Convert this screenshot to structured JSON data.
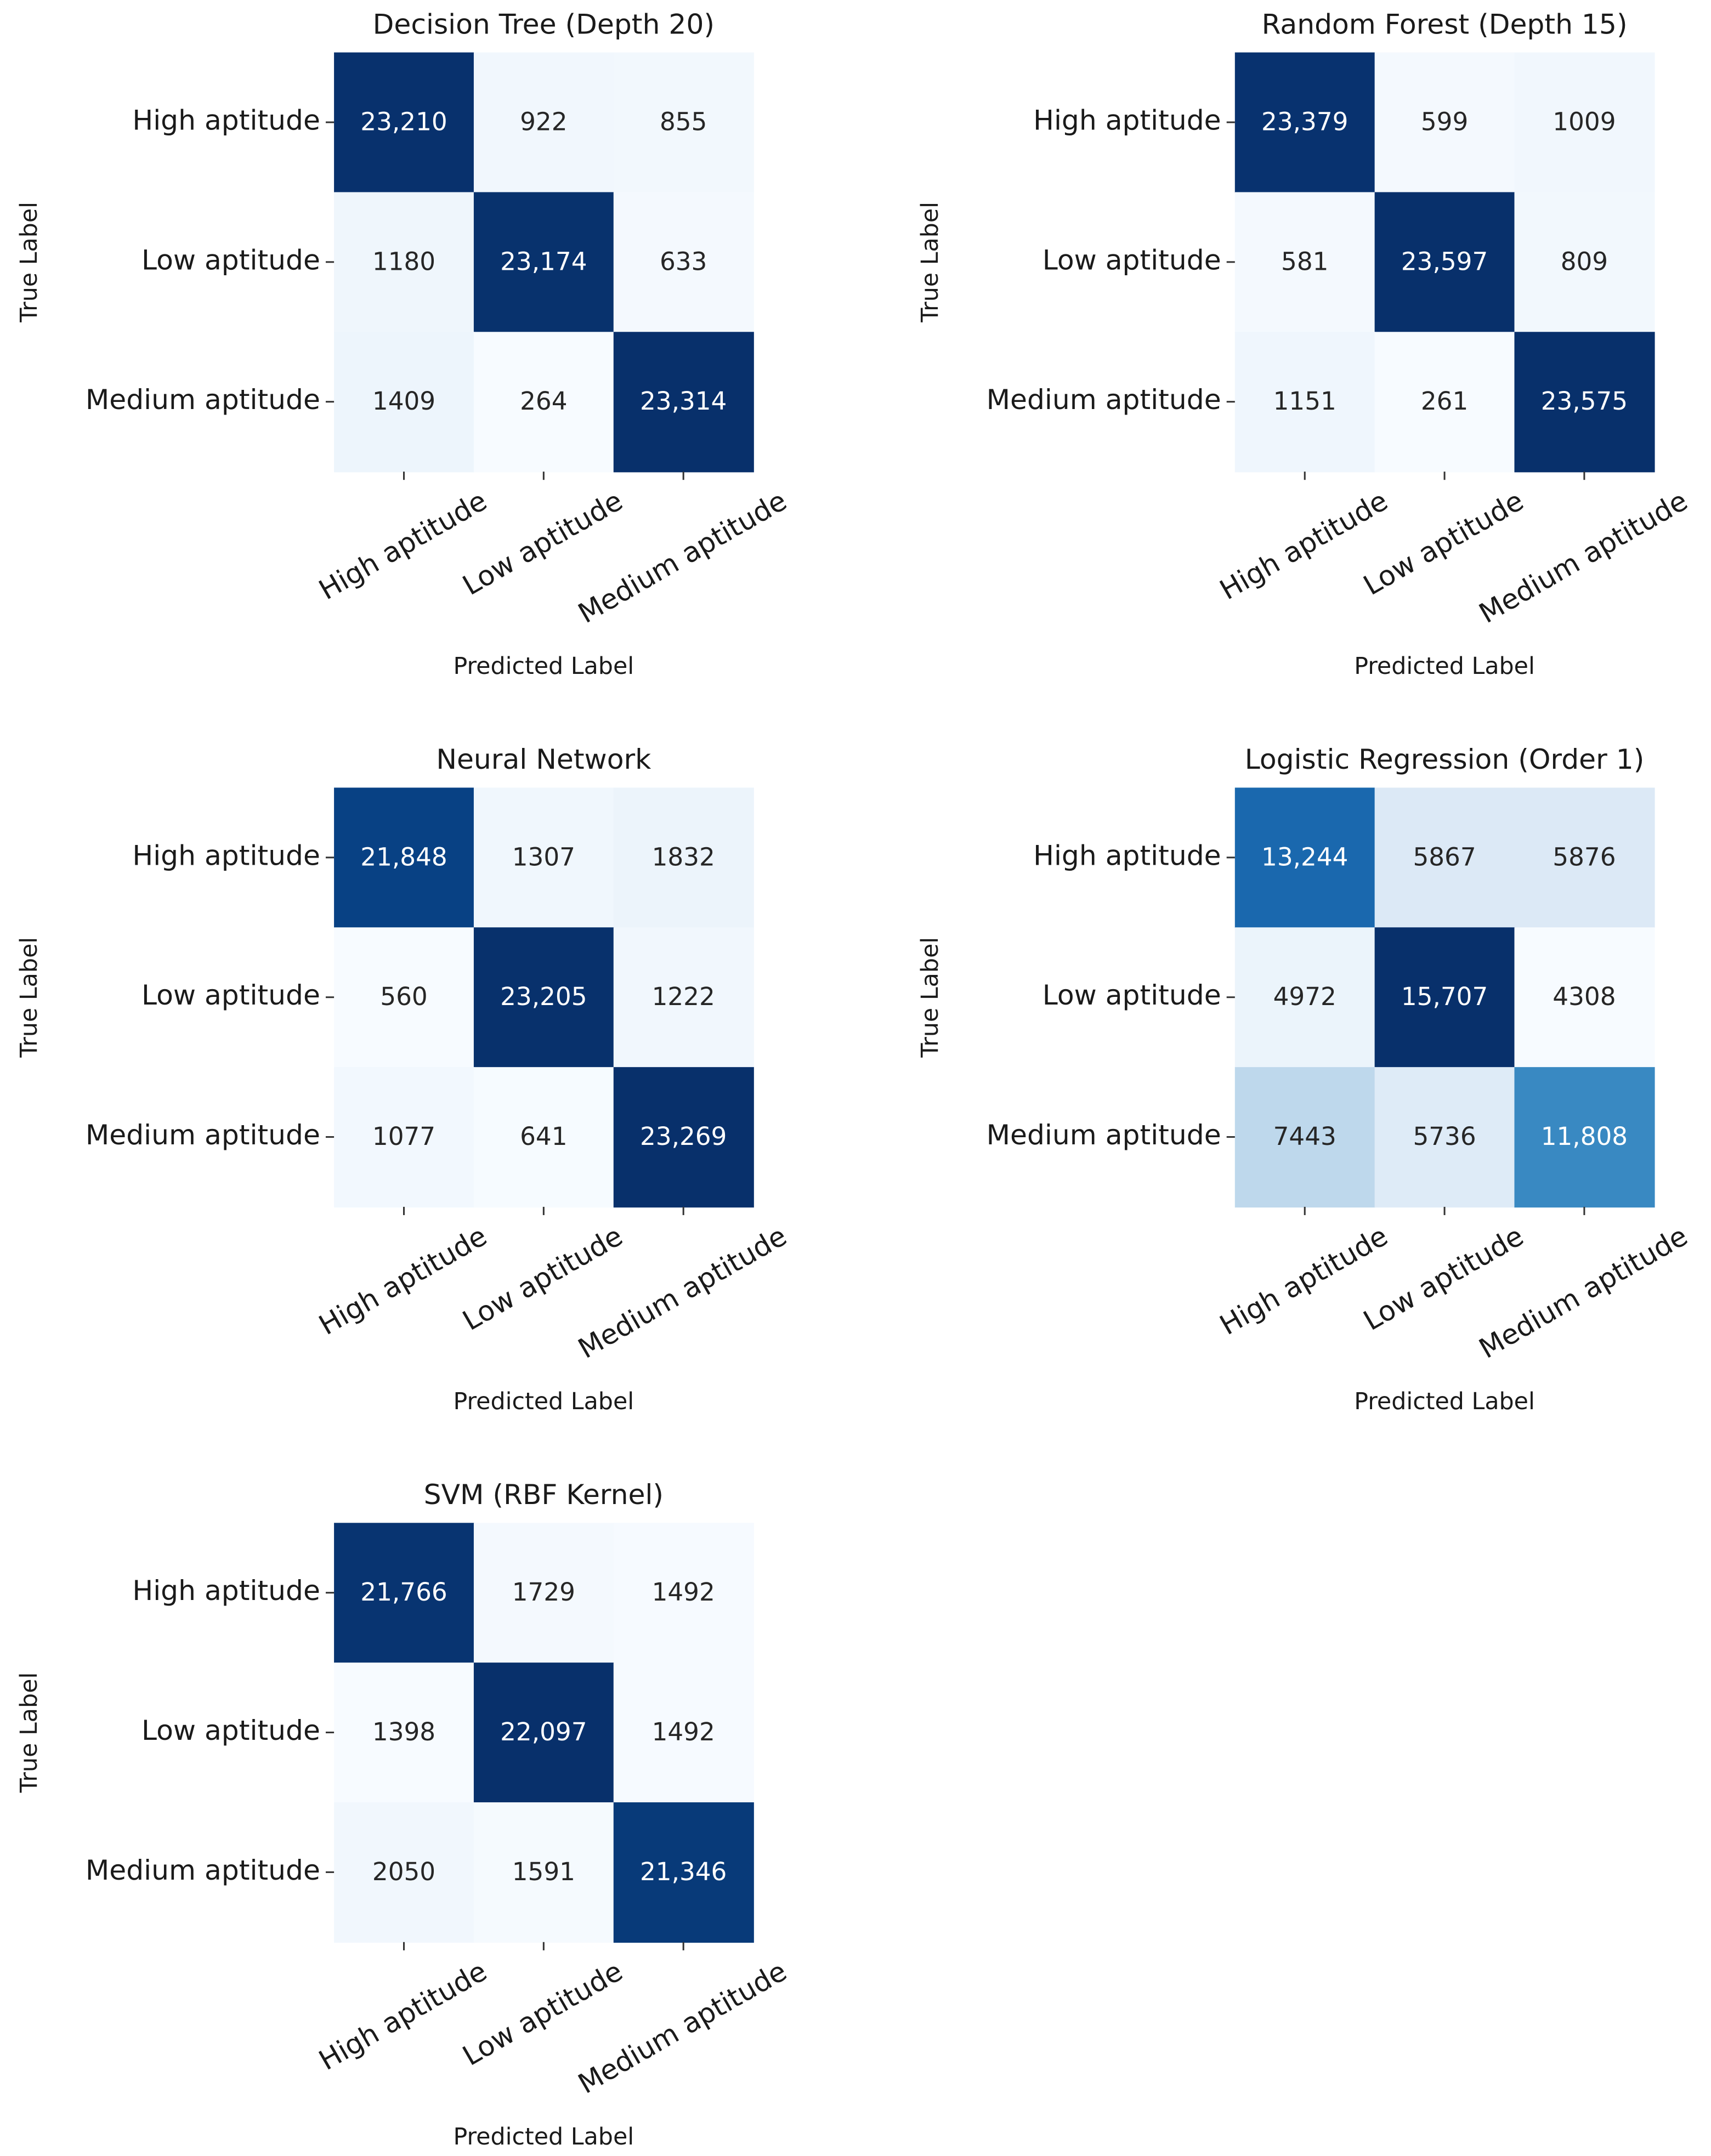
{
  "chart_data": [
    {
      "type": "heatmap",
      "title": "Decision Tree (Depth 20)",
      "xlabel": "Predicted Label",
      "ylabel": "True Label",
      "colormap": "Blues",
      "x_categories": [
        "High aptitude",
        "Low aptitude",
        "Medium aptitude"
      ],
      "y_categories": [
        "High aptitude",
        "Low aptitude",
        "Medium aptitude"
      ],
      "values": [
        [
          23210,
          922,
          855
        ],
        [
          1180,
          23174,
          633
        ],
        [
          1409,
          264,
          23314
        ]
      ],
      "value_labels": [
        [
          "23,210",
          "922",
          "855"
        ],
        [
          "1180",
          "23,174",
          "633"
        ],
        [
          "1409",
          "264",
          "23,314"
        ]
      ]
    },
    {
      "type": "heatmap",
      "title": "Random Forest (Depth 15)",
      "xlabel": "Predicted Label",
      "ylabel": "True Label",
      "colormap": "Blues",
      "x_categories": [
        "High aptitude",
        "Low aptitude",
        "Medium aptitude"
      ],
      "y_categories": [
        "High aptitude",
        "Low aptitude",
        "Medium aptitude"
      ],
      "values": [
        [
          23379,
          599,
          1009
        ],
        [
          581,
          23597,
          809
        ],
        [
          1151,
          261,
          23575
        ]
      ],
      "value_labels": [
        [
          "23,379",
          "599",
          "1009"
        ],
        [
          "581",
          "23,597",
          "809"
        ],
        [
          "1151",
          "261",
          "23,575"
        ]
      ]
    },
    {
      "type": "heatmap",
      "title": "Neural Network",
      "xlabel": "Predicted Label",
      "ylabel": "True Label",
      "colormap": "Blues",
      "x_categories": [
        "High aptitude",
        "Low aptitude",
        "Medium aptitude"
      ],
      "y_categories": [
        "High aptitude",
        "Low aptitude",
        "Medium aptitude"
      ],
      "values": [
        [
          21848,
          1307,
          1832
        ],
        [
          560,
          23205,
          1222
        ],
        [
          1077,
          641,
          23269
        ]
      ],
      "value_labels": [
        [
          "21,848",
          "1307",
          "1832"
        ],
        [
          "560",
          "23,205",
          "1222"
        ],
        [
          "1077",
          "641",
          "23,269"
        ]
      ]
    },
    {
      "type": "heatmap",
      "title": "Logistic Regression (Order 1)",
      "xlabel": "Predicted Label",
      "ylabel": "True Label",
      "colormap": "Blues",
      "x_categories": [
        "High aptitude",
        "Low aptitude",
        "Medium aptitude"
      ],
      "y_categories": [
        "High aptitude",
        "Low aptitude",
        "Medium aptitude"
      ],
      "values": [
        [
          13244,
          5867,
          5876
        ],
        [
          4972,
          15707,
          4308
        ],
        [
          7443,
          5736,
          11808
        ]
      ],
      "value_labels": [
        [
          "13,244",
          "5867",
          "5876"
        ],
        [
          "4972",
          "15,707",
          "4308"
        ],
        [
          "7443",
          "5736",
          "11,808"
        ]
      ]
    },
    {
      "type": "heatmap",
      "title": "SVM (RBF Kernel)",
      "xlabel": "Predicted Label",
      "ylabel": "True Label",
      "colormap": "Blues",
      "x_categories": [
        "High aptitude",
        "Low aptitude",
        "Medium aptitude"
      ],
      "y_categories": [
        "High aptitude",
        "Low aptitude",
        "Medium aptitude"
      ],
      "values": [
        [
          21766,
          1729,
          1492
        ],
        [
          1398,
          22097,
          1492
        ],
        [
          2050,
          1591,
          21346
        ]
      ],
      "value_labels": [
        [
          "21,766",
          "1729",
          "1492"
        ],
        [
          "1398",
          "22,097",
          "1492"
        ],
        [
          "2050",
          "1591",
          "21,346"
        ]
      ]
    }
  ]
}
